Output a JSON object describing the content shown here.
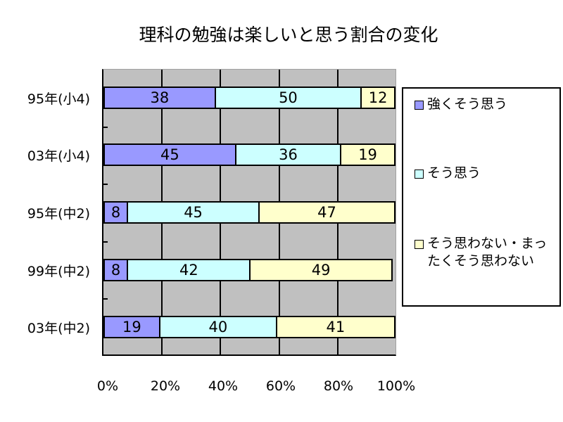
{
  "title": "理科の勉強は楽しいと思う割合の変化",
  "colors": {
    "strongly_agree": "#9999ff",
    "agree": "#ccffff",
    "disagree": "#ffffcc",
    "plot_bg": "#c0c0c0"
  },
  "y_labels": [
    "95年(小4)",
    "03年(小4)",
    "95年(中2)",
    "99年(中2)",
    "03年(中2)"
  ],
  "x_labels": [
    "0%",
    "20%",
    "40%",
    "60%",
    "80%",
    "100%"
  ],
  "legend": [
    {
      "label": "強くそう思う",
      "color": "#9999ff"
    },
    {
      "label": "そう思う",
      "color": "#ccffff"
    },
    {
      "label": "そう思わない・まったくそう思わない",
      "color": "#ffffcc"
    }
  ],
  "rows": [
    {
      "label": "95年(小4)",
      "values": [
        38,
        50,
        12
      ]
    },
    {
      "label": "03年(小4)",
      "values": [
        45,
        36,
        19
      ]
    },
    {
      "label": "95年(中2)",
      "values": [
        8,
        45,
        47
      ]
    },
    {
      "label": "99年(中2)",
      "values": [
        8,
        42,
        49
      ]
    },
    {
      "label": "03年(中2)",
      "values": [
        19,
        40,
        41
      ]
    }
  ],
  "chart_data": {
    "type": "bar",
    "orientation": "horizontal",
    "stacked": "percent",
    "title": "理科の勉強は楽しいと思う割合の変化",
    "categories": [
      "95年(小4)",
      "03年(小4)",
      "95年(中2)",
      "99年(中2)",
      "03年(中2)"
    ],
    "series": [
      {
        "name": "強くそう思う",
        "values": [
          38,
          45,
          8,
          8,
          19
        ],
        "color": "#9999ff"
      },
      {
        "name": "そう思う",
        "values": [
          50,
          36,
          45,
          42,
          40
        ],
        "color": "#ccffff"
      },
      {
        "name": "そう思わない・まったくそう思わない",
        "values": [
          12,
          19,
          47,
          49,
          41
        ],
        "color": "#ffffcc"
      }
    ],
    "xlabel": "",
    "ylabel": "",
    "xlim": [
      0,
      100
    ],
    "x_ticks": [
      "0%",
      "20%",
      "40%",
      "60%",
      "80%",
      "100%"
    ],
    "data_labels": true,
    "grid": "vertical",
    "legend_position": "right"
  }
}
